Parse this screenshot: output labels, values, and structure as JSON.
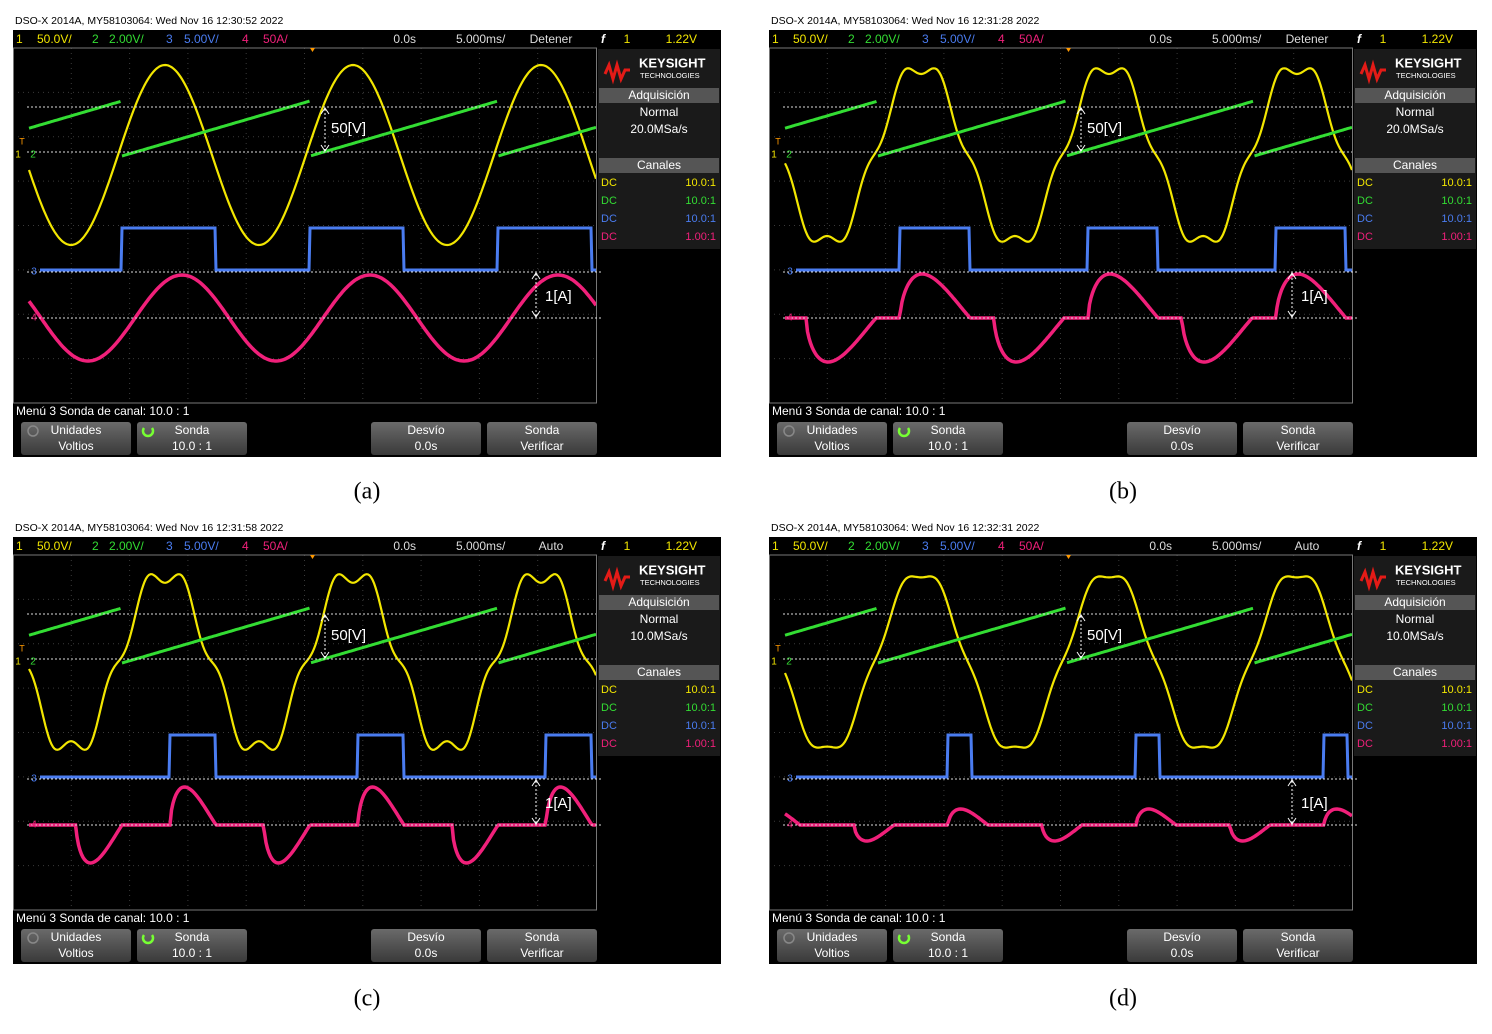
{
  "panels": [
    {
      "header": "DSO-X 2014A, MY58103064: Wed Nov 16 12:30:52 2022",
      "status": {
        "ch1": "1",
        "ch1_scale": "50.0V/",
        "ch2": "2",
        "ch2_scale": "2.00V/",
        "ch3": "3",
        "ch3_scale": "5.00V/",
        "ch4": "4",
        "ch4_scale": "50A/",
        "delay": "0.0s",
        "timebase": "5.000ms/",
        "mode": "Detener",
        "trig": "f",
        "trig_source": "1",
        "trig_level": "1.22V"
      },
      "sidebar": {
        "brand": "KEYSIGHT",
        "brand_sub": "TECHNOLOGIES",
        "acq_title": "Adquisición",
        "acq_mode": "Normal",
        "acq_rate": "20.0MSa/s",
        "chan_title": "Canales",
        "channels": [
          {
            "coupling": "DC",
            "probe": "10.0:1"
          },
          {
            "coupling": "DC",
            "probe": "10.0:1"
          },
          {
            "coupling": "DC",
            "probe": "10.0:1"
          },
          {
            "coupling": "DC",
            "probe": "1.00:1"
          }
        ]
      },
      "markers": {
        "trigger": "T",
        "ch1": "1",
        "ch2": "2",
        "ch3": "3",
        "ch4": "4"
      },
      "annotations": {
        "voltage": "50[V]",
        "current": "1[A]"
      },
      "menu": "Menú 3 Sonda de canal: 10.0 : 1",
      "softkeys": [
        {
          "top": "Unidades",
          "bottom": "Voltios"
        },
        {
          "top": "Sonda",
          "bottom": "10.0 : 1"
        },
        {
          "top": "Desvío",
          "bottom": "0.0s"
        },
        {
          "top": "Sonda",
          "bottom": "Verificar"
        }
      ],
      "caption": "(a)"
    },
    {
      "header": "DSO-X 2014A, MY58103064: Wed Nov 16 12:31:28 2022",
      "status": {
        "ch1": "1",
        "ch1_scale": "50.0V/",
        "ch2": "2",
        "ch2_scale": "2.00V/",
        "ch3": "3",
        "ch3_scale": "5.00V/",
        "ch4": "4",
        "ch4_scale": "50A/",
        "delay": "0.0s",
        "timebase": "5.000ms/",
        "mode": "Detener",
        "trig": "f",
        "trig_source": "1",
        "trig_level": "1.22V"
      },
      "sidebar": {
        "brand": "KEYSIGHT",
        "brand_sub": "TECHNOLOGIES",
        "acq_title": "Adquisición",
        "acq_mode": "Normal",
        "acq_rate": "20.0MSa/s",
        "chan_title": "Canales",
        "channels": [
          {
            "coupling": "DC",
            "probe": "10.0:1"
          },
          {
            "coupling": "DC",
            "probe": "10.0:1"
          },
          {
            "coupling": "DC",
            "probe": "10.0:1"
          },
          {
            "coupling": "DC",
            "probe": "1.00:1"
          }
        ]
      },
      "markers": {
        "trigger": "T",
        "ch1": "1",
        "ch2": "2",
        "ch3": "3",
        "ch4": "4"
      },
      "annotations": {
        "voltage": "50[V]",
        "current": "1[A]"
      },
      "menu": "Menú 3 Sonda de canal: 10.0 : 1",
      "softkeys": [
        {
          "top": "Unidades",
          "bottom": "Voltios"
        },
        {
          "top": "Sonda",
          "bottom": "10.0 : 1"
        },
        {
          "top": "Desvío",
          "bottom": "0.0s"
        },
        {
          "top": "Sonda",
          "bottom": "Verificar"
        }
      ],
      "caption": "(b)"
    },
    {
      "header": "DSO-X 2014A, MY58103064: Wed Nov 16 12:31:58 2022",
      "status": {
        "ch1": "1",
        "ch1_scale": "50.0V/",
        "ch2": "2",
        "ch2_scale": "2.00V/",
        "ch3": "3",
        "ch3_scale": "5.00V/",
        "ch4": "4",
        "ch4_scale": "50A/",
        "delay": "0.0s",
        "timebase": "5.000ms/",
        "mode": "Auto",
        "trig": "f",
        "trig_source": "1",
        "trig_level": "1.22V"
      },
      "sidebar": {
        "brand": "KEYSIGHT",
        "brand_sub": "TECHNOLOGIES",
        "acq_title": "Adquisición",
        "acq_mode": "Normal",
        "acq_rate": "10.0MSa/s",
        "chan_title": "Canales",
        "channels": [
          {
            "coupling": "DC",
            "probe": "10.0:1"
          },
          {
            "coupling": "DC",
            "probe": "10.0:1"
          },
          {
            "coupling": "DC",
            "probe": "10.0:1"
          },
          {
            "coupling": "DC",
            "probe": "1.00:1"
          }
        ]
      },
      "markers": {
        "trigger": "T",
        "ch1": "1",
        "ch2": "2",
        "ch3": "3",
        "ch4": "4"
      },
      "annotations": {
        "voltage": "50[V]",
        "current": "1[A]"
      },
      "menu": "Menú 3 Sonda de canal: 10.0 : 1",
      "softkeys": [
        {
          "top": "Unidades",
          "bottom": "Voltios"
        },
        {
          "top": "Sonda",
          "bottom": "10.0 : 1"
        },
        {
          "top": "Desvío",
          "bottom": "0.0s"
        },
        {
          "top": "Sonda",
          "bottom": "Verificar"
        }
      ],
      "caption": "(c)"
    },
    {
      "header": "DSO-X 2014A, MY58103064: Wed Nov 16 12:32:31 2022",
      "status": {
        "ch1": "1",
        "ch1_scale": "50.0V/",
        "ch2": "2",
        "ch2_scale": "2.00V/",
        "ch3": "3",
        "ch3_scale": "5.00V/",
        "ch4": "4",
        "ch4_scale": "50A/",
        "delay": "0.0s",
        "timebase": "5.000ms/",
        "mode": "Auto",
        "trig": "f",
        "trig_source": "1",
        "trig_level": "1.22V"
      },
      "sidebar": {
        "brand": "KEYSIGHT",
        "brand_sub": "TECHNOLOGIES",
        "acq_title": "Adquisición",
        "acq_mode": "Normal",
        "acq_rate": "10.0MSa/s",
        "chan_title": "Canales",
        "channels": [
          {
            "coupling": "DC",
            "probe": "10.0:1"
          },
          {
            "coupling": "DC",
            "probe": "10.0:1"
          },
          {
            "coupling": "DC",
            "probe": "10.0:1"
          },
          {
            "coupling": "DC",
            "probe": "1.00:1"
          }
        ]
      },
      "markers": {
        "trigger": "T",
        "ch1": "1",
        "ch2": "2",
        "ch3": "3",
        "ch4": "4"
      },
      "annotations": {
        "voltage": "50[V]",
        "current": "1[A]"
      },
      "menu": "Menú 3 Sonda de canal: 10.0 : 1",
      "softkeys": [
        {
          "top": "Unidades",
          "bottom": "Voltios"
        },
        {
          "top": "Sonda",
          "bottom": "10.0 : 1"
        },
        {
          "top": "Desvío",
          "bottom": "0.0s"
        },
        {
          "top": "Sonda",
          "bottom": "Verificar"
        }
      ],
      "caption": "(d)"
    }
  ]
}
